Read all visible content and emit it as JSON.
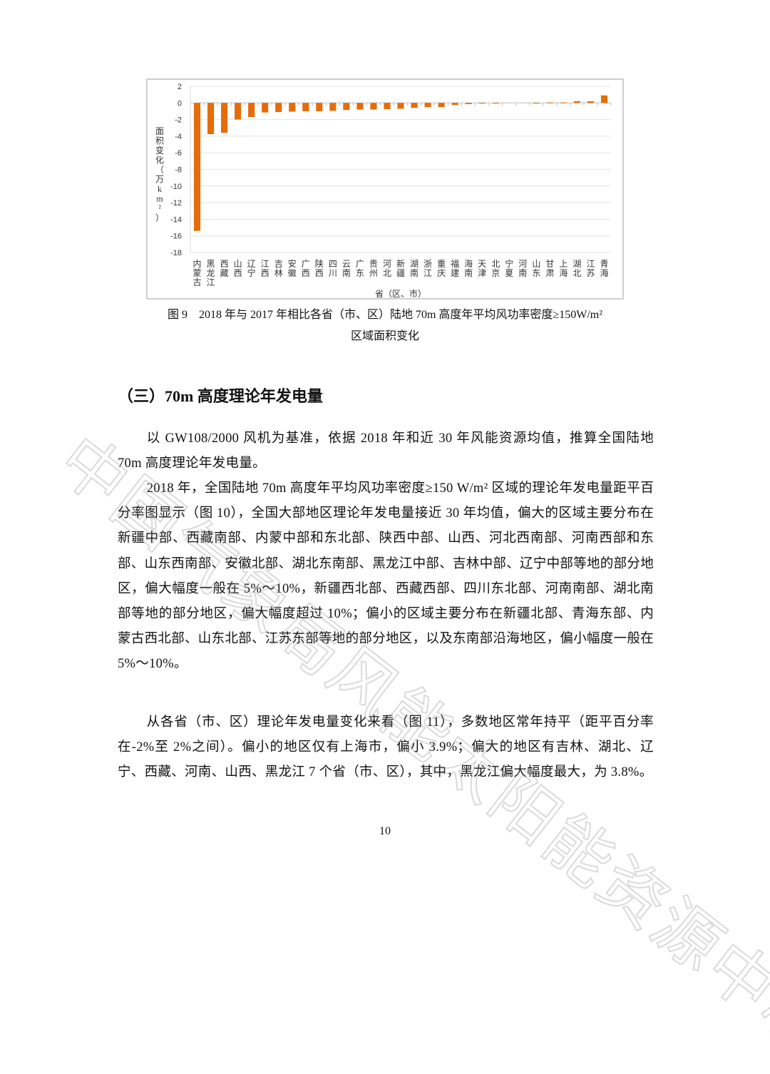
{
  "watermark": "中国气象局风能太阳能资源中心",
  "chart_data": {
    "type": "bar",
    "title": "",
    "xlabel": "省（区、市）",
    "ylabel": "面积变化（万km²）",
    "ylim": [
      -18,
      2
    ],
    "yticks": [
      2,
      0,
      -2,
      -4,
      -6,
      -8,
      -10,
      -12,
      -14,
      -16,
      -18
    ],
    "grid": true,
    "bar_color": "#E46C0A",
    "categories": [
      "内蒙古",
      "黑龙江",
      "西藏",
      "山西",
      "辽宁",
      "江西",
      "吉林",
      "安徽",
      "广西",
      "陕西",
      "四川",
      "云南",
      "广东",
      "贵州",
      "河北",
      "新疆",
      "湖南",
      "浙江",
      "重庆",
      "福建",
      "海南",
      "天津",
      "北京",
      "宁夏",
      "河南",
      "山东",
      "甘肃",
      "上海",
      "湖北",
      "江苏",
      "青海"
    ],
    "values": [
      -15.4,
      -3.75,
      -3.6,
      -2.0,
      -1.7,
      -1.15,
      -1.1,
      -1.05,
      -1.0,
      -1.0,
      -0.95,
      -0.85,
      -0.8,
      -0.8,
      -0.75,
      -0.7,
      -0.6,
      -0.5,
      -0.5,
      -0.25,
      -0.15,
      -0.05,
      -0.05,
      0,
      0,
      -0.03,
      0.05,
      0.05,
      0.2,
      0.2,
      0.9
    ]
  },
  "caption": {
    "line1": "图 9　2018 年与 2017 年相比各省（市、区）陆地 70m 高度年平均风功率密度≥150W/m²",
    "line2": "区域面积变化"
  },
  "section_heading": "（三）70m 高度理论年发电量",
  "paragraphs": [
    "以 GW108/2000 风机为基准，依据 2018 年和近 30 年风能资源均值，推算全国陆地 70m 高度理论年发电量。",
    "2018 年，全国陆地 70m 高度年平均风功率密度≥150 W/m² 区域的理论年发电量距平百分率图显示（图 10），全国大部地区理论年发电量接近 30 年均值，偏大的区域主要分布在新疆中部、西藏南部、内蒙中部和东北部、陕西中部、山西、河北西南部、河南西部和东部、山东西南部、安徽北部、湖北东南部、黑龙江中部、吉林中部、辽宁中部等地的部分地区，偏大幅度一般在 5%～10%，新疆西北部、西藏西部、四川东北部、河南南部、湖北南部等地的部分地区，偏大幅度超过 10%；偏小的区域主要分布在新疆北部、青海东部、内蒙古西北部、山东北部、江苏东部等地的部分地区，以及东南部沿海地区，偏小幅度一般在 5%～10%。",
    "从各省（市、区）理论年发电量变化来看（图 11），多数地区常年持平（距平百分率在-2%至 2%之间）。偏小的地区仅有上海市，偏小 3.9%；偏大的地区有吉林、湖北、辽宁、西藏、河南、山西、黑龙江 7 个省（市、区），其中，黑龙江偏大幅度最大，为 3.8%。"
  ],
  "page_number": "10"
}
